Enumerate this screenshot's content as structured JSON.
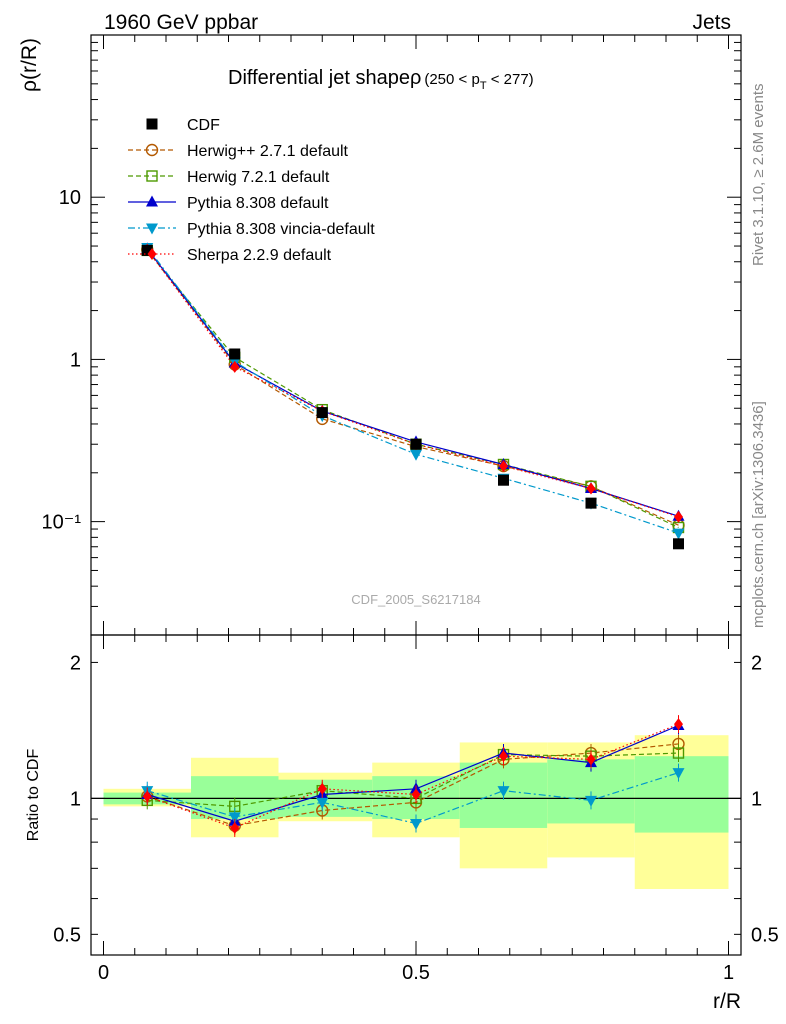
{
  "header": {
    "energy": "1960 GeV ppbar",
    "process": "Jets"
  },
  "side_text": {
    "rivet": "Rivet 3.1.10, ≥ 2.6M events",
    "mcplots": "mcplots.cern.ch [arXiv:1306.3436]"
  },
  "analysis_label": "CDF_2005_S6217184",
  "chart_data": [
    {
      "type": "scatter",
      "title": "Differential jet shapeρ",
      "subtitle": "(250 < p_T < 277)",
      "xlabel": "r/R",
      "ylabel": "ρ(r/R)",
      "yscale": "log",
      "xlim": [
        -0.02,
        1.02
      ],
      "ylim": [
        0.02,
        100
      ],
      "y_ticks": [
        {
          "v": 0.1,
          "label": "10⁻¹"
        },
        {
          "v": 1,
          "label": "1"
        },
        {
          "v": 10,
          "label": "10"
        }
      ],
      "legend_position": "top-left",
      "x": [
        0.07,
        0.21,
        0.35,
        0.5,
        0.64,
        0.78,
        0.92
      ],
      "series": [
        {
          "name": "CDF",
          "color": "#000000",
          "marker": "square-filled",
          "line": "none",
          "values": [
            4.7,
            1.08,
            0.47,
            0.3,
            0.18,
            0.13,
            0.073
          ]
        },
        {
          "name": "Herwig++ 2.7.1 default",
          "color": "#b35900",
          "marker": "circle-open",
          "line": "dashed",
          "values": [
            4.75,
            0.93,
            0.43,
            0.29,
            0.22,
            0.165,
            0.095
          ]
        },
        {
          "name": "Herwig 7.2.1 default",
          "color": "#4d9900",
          "marker": "square-open",
          "line": "dashed",
          "values": [
            4.7,
            1.03,
            0.49,
            0.3,
            0.225,
            0.165,
            0.092
          ]
        },
        {
          "name": "Pythia 8.308 default",
          "color": "#0000cc",
          "marker": "triangle-up",
          "line": "solid",
          "values": [
            4.8,
            0.95,
            0.48,
            0.31,
            0.225,
            0.16,
            0.108
          ]
        },
        {
          "name": "Pythia 8.308 vincia-default",
          "color": "#0099cc",
          "marker": "triangle-down",
          "line": "dashdot",
          "values": [
            4.9,
            0.97,
            0.45,
            0.26,
            0.185,
            0.13,
            0.085
          ]
        },
        {
          "name": "Sherpa 2.2.9 default",
          "color": "#ff0000",
          "marker": "diamond",
          "line": "dotted",
          "values": [
            4.75,
            0.9,
            0.48,
            0.3,
            0.22,
            0.16,
            0.107
          ]
        }
      ]
    },
    {
      "type": "scatter",
      "title": "",
      "xlabel": "r/R",
      "ylabel": "Ratio to CDF",
      "yscale": "log",
      "xlim": [
        -0.02,
        1.02
      ],
      "ylim": [
        0.45,
        2.3
      ],
      "x_ticks": [
        {
          "v": 0,
          "label": "0"
        },
        {
          "v": 0.5,
          "label": "0.5"
        },
        {
          "v": 1,
          "label": "1"
        }
      ],
      "y_ticks": [
        {
          "v": 0.5,
          "label": "0.5"
        },
        {
          "v": 1,
          "label": "1"
        },
        {
          "v": 2,
          "label": "2"
        }
      ],
      "bands": {
        "x_edges": [
          0,
          0.14,
          0.28,
          0.43,
          0.57,
          0.71,
          0.85,
          1.0
        ],
        "outer_lo": [
          0.96,
          0.82,
          0.89,
          0.82,
          0.7,
          0.74,
          0.63
        ],
        "outer_hi": [
          1.05,
          1.23,
          1.14,
          1.2,
          1.33,
          1.33,
          1.38
        ],
        "inner_lo": [
          0.97,
          0.9,
          0.91,
          0.9,
          0.86,
          0.88,
          0.84
        ],
        "inner_hi": [
          1.03,
          1.12,
          1.1,
          1.12,
          1.2,
          1.22,
          1.24
        ],
        "outer_color": "#ffff99",
        "inner_color": "#99ff99"
      },
      "x": [
        0.07,
        0.21,
        0.35,
        0.5,
        0.64,
        0.78,
        0.92
      ],
      "series": [
        {
          "name": "Herwig++ 2.7.1 default",
          "color": "#b35900",
          "marker": "circle-open",
          "line": "dashed",
          "values": [
            1.01,
            0.87,
            0.94,
            0.98,
            1.22,
            1.26,
            1.32
          ]
        },
        {
          "name": "Herwig 7.2.1 default",
          "color": "#4d9900",
          "marker": "square-open",
          "line": "dashed",
          "values": [
            0.99,
            0.96,
            1.04,
            1.0,
            1.25,
            1.24,
            1.26
          ]
        },
        {
          "name": "Pythia 8.308 default",
          "color": "#0000cc",
          "marker": "triangle-up",
          "line": "solid",
          "values": [
            1.02,
            0.89,
            1.02,
            1.05,
            1.26,
            1.2,
            1.45
          ]
        },
        {
          "name": "Pythia 8.308 vincia-default",
          "color": "#0099cc",
          "marker": "triangle-down",
          "line": "dashdot",
          "values": [
            1.04,
            0.91,
            0.98,
            0.88,
            1.04,
            0.99,
            1.14
          ]
        },
        {
          "name": "Sherpa 2.2.9 default",
          "color": "#ff0000",
          "marker": "diamond",
          "line": "dotted",
          "values": [
            1.01,
            0.86,
            1.05,
            1.02,
            1.24,
            1.22,
            1.46
          ]
        }
      ]
    }
  ]
}
